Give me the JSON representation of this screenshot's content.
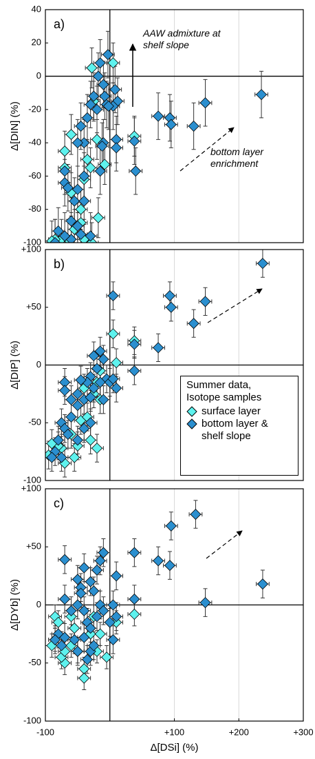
{
  "chart_data": [
    {
      "type": "scatter",
      "panel_label": "a)",
      "y_label": "Δ[DIN] (%)",
      "xlim": [
        -100,
        300
      ],
      "ylim": [
        -100,
        40
      ],
      "yticks": [
        40,
        20,
        0,
        -20,
        -40,
        -60,
        -80,
        -100
      ],
      "grid": true,
      "annotations": [
        "AAW admixture at shelf slope",
        "bottom layer enrichment"
      ],
      "series": [
        {
          "name": "surface layer",
          "color": "#5ef2ee",
          "xerr": 10,
          "yerr": 12,
          "x": [
            5,
            -28,
            -25,
            -60,
            -70,
            -70,
            -60,
            -35,
            -30,
            -40,
            -20,
            -8,
            -18,
            -45,
            -45,
            -55,
            -65,
            -75,
            -85,
            -90,
            -40,
            -28,
            38
          ],
          "values": [
            8,
            5,
            -15,
            -35,
            -55,
            -45,
            -70,
            -50,
            -55,
            -62,
            -38,
            -53,
            -85,
            -80,
            -88,
            -92,
            -98,
            -98,
            -98,
            -99,
            -98,
            -100,
            -36
          ]
        },
        {
          "name": "bottom layer & shelf slope",
          "color": "#2b8fcf",
          "xerr": 10,
          "yerr": 14,
          "x": [
            -3,
            -15,
            -18,
            -10,
            -25,
            -8,
            -30,
            -20,
            -5,
            8,
            12,
            5,
            -2,
            -10,
            -12,
            -35,
            -45,
            -40,
            -50,
            -15,
            10,
            10,
            40,
            38,
            75,
            93,
            95,
            130,
            148,
            235,
            -70,
            -70,
            -65,
            -50,
            -40,
            -55,
            -40,
            -60,
            -50,
            -80,
            -85,
            -60,
            -45,
            -30,
            -70
          ],
          "values": [
            13,
            8,
            0,
            -5,
            -12,
            -12,
            -17,
            -20,
            -17,
            -8,
            -15,
            -18,
            -18,
            -40,
            -42,
            -25,
            -30,
            -40,
            -40,
            -57,
            -38,
            -43,
            -57,
            -39,
            -24,
            -25,
            -29,
            -30,
            -16,
            -11,
            -57,
            -64,
            -67,
            -68,
            -60,
            -75,
            -75,
            -87,
            -90,
            -93,
            -100,
            -98,
            -95,
            -96,
            -96
          ]
        }
      ]
    },
    {
      "type": "scatter",
      "panel_label": "b)",
      "y_label": "Δ[DIP] (%)",
      "xlim": [
        -100,
        300
      ],
      "ylim": [
        -100,
        100
      ],
      "yticks": [
        {
          "value": 100,
          "label": "+100"
        },
        {
          "value": 50,
          "label": "+50"
        },
        0,
        -50,
        -100
      ],
      "grid": true,
      "legend_title": "Summer data, Isotope samples",
      "legend": "lower right",
      "series": [
        {
          "name": "surface layer",
          "color": "#5ef2ee",
          "xerr": 10,
          "yerr": 12,
          "x": [
            5,
            38,
            10,
            -15,
            -20,
            -25,
            -40,
            -45,
            -35,
            -30,
            -20,
            -50,
            -55,
            -70,
            -75,
            -80,
            -90,
            -95,
            -60,
            -15
          ],
          "values": [
            27,
            21,
            2,
            -5,
            -15,
            -25,
            -20,
            -48,
            -45,
            -65,
            -72,
            -70,
            -80,
            -85,
            -72,
            -70,
            -68,
            -78,
            -60,
            -30
          ]
        },
        {
          "name": "bottom layer & shelf slope",
          "color": "#2b8fcf",
          "xerr": 10,
          "yerr": 12,
          "x": [
            237,
            93,
            95,
            148,
            130,
            75,
            38,
            38,
            5,
            -25,
            -15,
            -10,
            -20,
            -5,
            -15,
            -30,
            -35,
            -45,
            -25,
            0,
            10,
            -70,
            -70,
            -50,
            -60,
            -50,
            -40,
            -30,
            -75,
            -70,
            -65,
            -80,
            -85,
            -90,
            -75,
            -50,
            -40,
            -30,
            -60,
            5,
            -10
          ],
          "values": [
            88,
            60,
            50,
            55,
            36,
            15,
            18,
            -5,
            60,
            8,
            12,
            5,
            -3,
            -12,
            -15,
            -10,
            -15,
            -13,
            -20,
            -15,
            -20,
            -15,
            -22,
            -25,
            -30,
            -35,
            -30,
            -28,
            -50,
            -55,
            -60,
            -65,
            -75,
            -80,
            -80,
            -65,
            -55,
            -50,
            -45,
            -12,
            -30
          ]
        }
      ]
    },
    {
      "type": "scatter",
      "panel_label": "c)",
      "y_label": "Δ[DYb] (%)",
      "x_label": "Δ[DSi] (%)",
      "xlim": [
        -100,
        300
      ],
      "xticks": [
        -100,
        {
          "value": 100,
          "label": "+100"
        },
        {
          "value": 200,
          "label": "+200"
        },
        {
          "value": 300,
          "label": "+300"
        }
      ],
      "ylim": [
        -100,
        100
      ],
      "yticks": [
        {
          "value": 100,
          "label": "+100"
        },
        {
          "value": 50,
          "label": "+50"
        },
        0,
        -50,
        -100
      ],
      "grid": true,
      "series": [
        {
          "name": "surface layer",
          "color": "#5ef2ee",
          "xerr": 10,
          "yerr": 10,
          "x": [
            38,
            10,
            -5,
            -20,
            -25,
            -30,
            -40,
            -40,
            -50,
            -55,
            -60,
            -70,
            -75,
            -85,
            -90,
            -85,
            -80,
            -70,
            -60,
            -15
          ],
          "values": [
            -8,
            -15,
            -45,
            -40,
            -10,
            -25,
            -55,
            -63,
            -40,
            -20,
            -35,
            -50,
            -45,
            -30,
            -35,
            -10,
            -15,
            -40,
            -10,
            -25
          ]
        },
        {
          "name": "bottom layer & shelf slope",
          "color": "#2b8fcf",
          "xerr": 10,
          "yerr": 12,
          "x": [
            237,
            148,
            133,
            95,
            93,
            75,
            38,
            38,
            10,
            5,
            5,
            -10,
            -15,
            -20,
            -30,
            -40,
            -50,
            -45,
            -70,
            -70,
            -60,
            -50,
            -40,
            -35,
            -30,
            -20,
            -15,
            -10,
            0,
            10,
            -80,
            -75,
            -70,
            -55,
            -50,
            -40,
            -30,
            -25,
            -85,
            -45,
            -25,
            -35
          ],
          "values": [
            18,
            2,
            78,
            68,
            34,
            38,
            45,
            5,
            25,
            0,
            -30,
            45,
            38,
            30,
            20,
            32,
            22,
            15,
            39,
            5,
            -5,
            0,
            -5,
            -15,
            -20,
            -10,
            0,
            -5,
            -15,
            -10,
            -25,
            -35,
            -28,
            -30,
            -40,
            -28,
            -40,
            -35,
            -30,
            10,
            12,
            -47
          ]
        }
      ]
    }
  ]
}
